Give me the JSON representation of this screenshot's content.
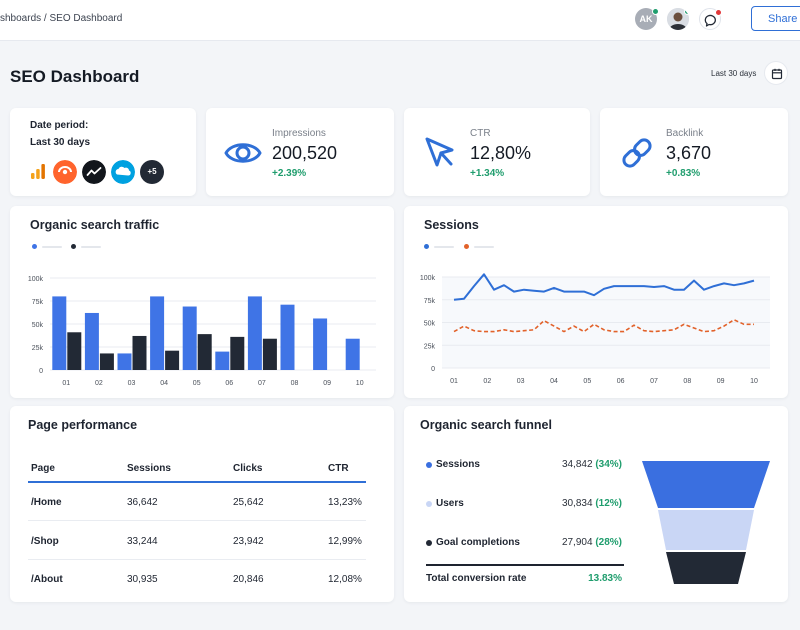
{
  "topbar": {
    "breadcrumb": "shboards / SEO Dashboard",
    "avatar_initials": "AK",
    "share_label": "Share"
  },
  "header": {
    "title": "SEO Dashboard",
    "period": "Last 30 days",
    "calendar_icon": "calendar-icon"
  },
  "date_period": {
    "label": "Date period:",
    "value": "Last 30 days",
    "more_sources": "+5",
    "sources": [
      "google-analytics-icon",
      "semrush-icon",
      "trend-icon",
      "salesforce-icon"
    ]
  },
  "kpis": [
    {
      "label": "Impressions",
      "value": "200,520",
      "delta": "+2.39%",
      "icon": "eye-icon"
    },
    {
      "label": "CTR",
      "value": "12,80%",
      "delta": "+1.34%",
      "icon": "cursor-icon"
    },
    {
      "label": "Backlink",
      "value": "3,670",
      "delta": "+0.83%",
      "icon": "link-icon"
    }
  ],
  "organic_traffic": {
    "title": "Organic search traffic"
  },
  "sessions": {
    "title": "Sessions"
  },
  "page_performance": {
    "title": "Page performance",
    "columns": [
      "Page",
      "Sessions",
      "Clicks",
      "CTR"
    ],
    "rows": [
      [
        "/Home",
        "36,642",
        "25,642",
        "13,23%"
      ],
      [
        "/Shop",
        "33,244",
        "23,942",
        "12,99%"
      ],
      [
        "/About",
        "30,935",
        "20,846",
        "12,08%"
      ]
    ]
  },
  "funnel": {
    "title": "Organic search funnel",
    "stages": [
      {
        "name": "Sessions",
        "value": "34,842",
        "pct": "(34%)",
        "color": "#3a6fe0"
      },
      {
        "name": "Users",
        "value": "30,834",
        "pct": "(12%)",
        "color": "#c9d6f5"
      },
      {
        "name": "Goal completions",
        "value": "27,904",
        "pct": "(28%)",
        "color": "#222935"
      }
    ],
    "total_label": "Total conversion rate",
    "total_value": "13.83%"
  },
  "colors": {
    "accent": "#2f6fd6",
    "bar_blue": "#3f74e6",
    "bar_dark": "#222935",
    "positive": "#1f9d6d",
    "series_orange": "#e2622a"
  },
  "chart_data": [
    {
      "type": "bar",
      "categories": [
        "01",
        "02",
        "03",
        "04",
        "05",
        "06",
        "07",
        "08",
        "09",
        "10"
      ],
      "series": [
        {
          "values": [
            80,
            62,
            18,
            80,
            69,
            20,
            80,
            71,
            56,
            34
          ]
        },
        {
          "values": [
            41,
            18,
            37,
            21,
            39,
            36,
            34,
            0,
            0,
            0
          ]
        }
      ],
      "yticks": [
        "100k",
        "75k",
        "50k",
        "25k",
        "0"
      ],
      "ylim": [
        0,
        100
      ],
      "grid": true
    },
    {
      "type": "line",
      "categories": [
        "01",
        "02",
        "03",
        "04",
        "05",
        "06",
        "07",
        "08",
        "09",
        "10"
      ],
      "x": [
        1,
        1.3,
        1.6,
        1.9,
        2.2,
        2.5,
        2.8,
        3.1,
        3.4,
        3.7,
        4.0,
        4.3,
        4.6,
        4.9,
        5.2,
        5.5,
        5.8,
        6.1,
        6.4,
        6.7,
        7.0,
        7.3,
        7.6,
        7.9,
        8.2,
        8.5,
        8.8,
        9.1,
        9.4,
        9.7,
        10.0
      ],
      "series": [
        {
          "values": [
            75,
            76,
            90,
            103,
            86,
            91,
            84,
            86,
            85,
            84,
            88,
            84,
            84,
            84,
            80,
            87,
            90,
            90,
            90,
            90,
            89,
            90,
            86,
            86,
            96,
            86,
            90,
            93,
            91,
            93,
            96
          ]
        },
        {
          "values": [
            40,
            46,
            41,
            40,
            40,
            42,
            40,
            41,
            42,
            52,
            46,
            40,
            46,
            40,
            48,
            42,
            40,
            40,
            47,
            41,
            40,
            41,
            42,
            48,
            44,
            40,
            41,
            46,
            53,
            48,
            48
          ]
        }
      ],
      "yticks": [
        "100k",
        "75k",
        "50k",
        "25k",
        "0"
      ],
      "ylim": [
        0,
        100
      ],
      "grid": true
    }
  ]
}
